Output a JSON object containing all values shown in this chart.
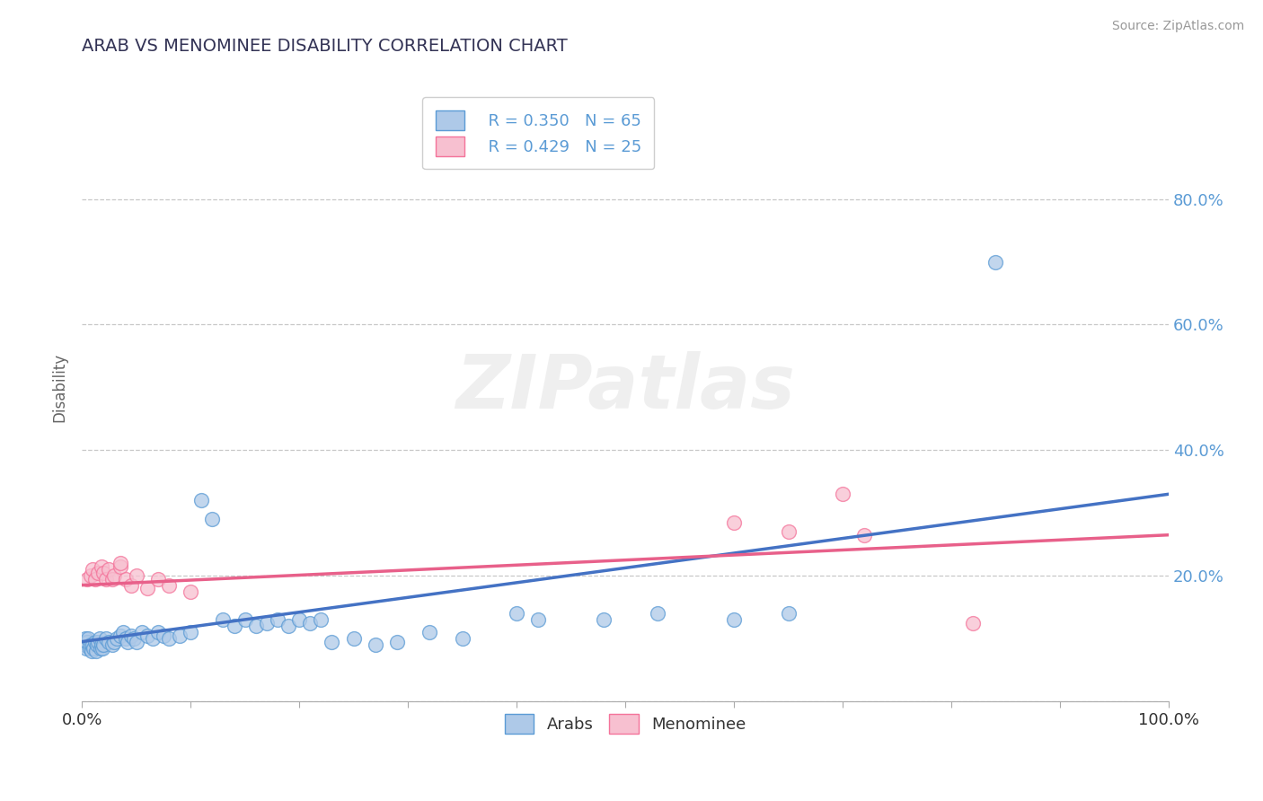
{
  "title": "ARAB VS MENOMINEE DISABILITY CORRELATION CHART",
  "source": "Source: ZipAtlas.com",
  "ylabel": "Disability",
  "watermark": "ZIPatlas",
  "xlim": [
    0,
    1.0
  ],
  "ylim": [
    0,
    1.0
  ],
  "xticks": [
    0.0,
    0.1,
    0.2,
    0.3,
    0.4,
    0.5,
    0.6,
    0.7,
    0.8,
    0.9,
    1.0
  ],
  "ytick_positions": [
    0.0,
    0.2,
    0.4,
    0.6,
    0.8
  ],
  "ytick_labels_right": [
    "",
    "20.0%",
    "40.0%",
    "60.0%",
    "80.0%"
  ],
  "arab_color": "#aec9e8",
  "menominee_color": "#f7c0d0",
  "arab_edge_color": "#5b9bd5",
  "menominee_edge_color": "#f4739a",
  "arab_trend_color": "#4472c4",
  "menominee_trend_color": "#e8608a",
  "legend_arab_R": "R = 0.350",
  "legend_arab_N": "N = 65",
  "legend_menominee_R": "R = 0.429",
  "legend_menominee_N": "N = 25",
  "arab_scatter": [
    [
      0.001,
      0.095
    ],
    [
      0.002,
      0.09
    ],
    [
      0.003,
      0.1
    ],
    [
      0.004,
      0.085
    ],
    [
      0.005,
      0.095
    ],
    [
      0.006,
      0.1
    ],
    [
      0.007,
      0.085
    ],
    [
      0.008,
      0.09
    ],
    [
      0.009,
      0.08
    ],
    [
      0.01,
      0.09
    ],
    [
      0.011,
      0.085
    ],
    [
      0.012,
      0.095
    ],
    [
      0.013,
      0.08
    ],
    [
      0.014,
      0.09
    ],
    [
      0.015,
      0.095
    ],
    [
      0.016,
      0.1
    ],
    [
      0.017,
      0.085
    ],
    [
      0.018,
      0.09
    ],
    [
      0.019,
      0.085
    ],
    [
      0.02,
      0.09
    ],
    [
      0.022,
      0.1
    ],
    [
      0.025,
      0.095
    ],
    [
      0.028,
      0.09
    ],
    [
      0.03,
      0.095
    ],
    [
      0.032,
      0.1
    ],
    [
      0.035,
      0.105
    ],
    [
      0.038,
      0.11
    ],
    [
      0.04,
      0.1
    ],
    [
      0.042,
      0.095
    ],
    [
      0.045,
      0.105
    ],
    [
      0.048,
      0.1
    ],
    [
      0.05,
      0.095
    ],
    [
      0.055,
      0.11
    ],
    [
      0.06,
      0.105
    ],
    [
      0.065,
      0.1
    ],
    [
      0.07,
      0.11
    ],
    [
      0.075,
      0.105
    ],
    [
      0.08,
      0.1
    ],
    [
      0.09,
      0.105
    ],
    [
      0.1,
      0.11
    ],
    [
      0.11,
      0.32
    ],
    [
      0.12,
      0.29
    ],
    [
      0.13,
      0.13
    ],
    [
      0.14,
      0.12
    ],
    [
      0.15,
      0.13
    ],
    [
      0.16,
      0.12
    ],
    [
      0.17,
      0.125
    ],
    [
      0.18,
      0.13
    ],
    [
      0.19,
      0.12
    ],
    [
      0.2,
      0.13
    ],
    [
      0.21,
      0.125
    ],
    [
      0.22,
      0.13
    ],
    [
      0.23,
      0.095
    ],
    [
      0.25,
      0.1
    ],
    [
      0.27,
      0.09
    ],
    [
      0.29,
      0.095
    ],
    [
      0.32,
      0.11
    ],
    [
      0.35,
      0.1
    ],
    [
      0.4,
      0.14
    ],
    [
      0.42,
      0.13
    ],
    [
      0.48,
      0.13
    ],
    [
      0.53,
      0.14
    ],
    [
      0.6,
      0.13
    ],
    [
      0.65,
      0.14
    ],
    [
      0.84,
      0.7
    ]
  ],
  "menominee_scatter": [
    [
      0.005,
      0.195
    ],
    [
      0.008,
      0.2
    ],
    [
      0.01,
      0.21
    ],
    [
      0.012,
      0.195
    ],
    [
      0.015,
      0.205
    ],
    [
      0.018,
      0.215
    ],
    [
      0.02,
      0.205
    ],
    [
      0.022,
      0.195
    ],
    [
      0.025,
      0.21
    ],
    [
      0.028,
      0.195
    ],
    [
      0.03,
      0.2
    ],
    [
      0.035,
      0.215
    ],
    [
      0.04,
      0.195
    ],
    [
      0.045,
      0.185
    ],
    [
      0.05,
      0.2
    ],
    [
      0.06,
      0.18
    ],
    [
      0.07,
      0.195
    ],
    [
      0.08,
      0.185
    ],
    [
      0.1,
      0.175
    ],
    [
      0.035,
      0.22
    ],
    [
      0.6,
      0.285
    ],
    [
      0.65,
      0.27
    ],
    [
      0.7,
      0.33
    ],
    [
      0.72,
      0.265
    ],
    [
      0.82,
      0.125
    ]
  ],
  "arab_trendline": [
    [
      0.0,
      0.095
    ],
    [
      1.0,
      0.33
    ]
  ],
  "menominee_trendline": [
    [
      0.0,
      0.185
    ],
    [
      1.0,
      0.265
    ]
  ],
  "background_color": "#ffffff",
  "grid_color": "#c8c8c8",
  "title_color": "#333355",
  "axis_label_color": "#666666",
  "tick_label_color": "#5b9bd5"
}
